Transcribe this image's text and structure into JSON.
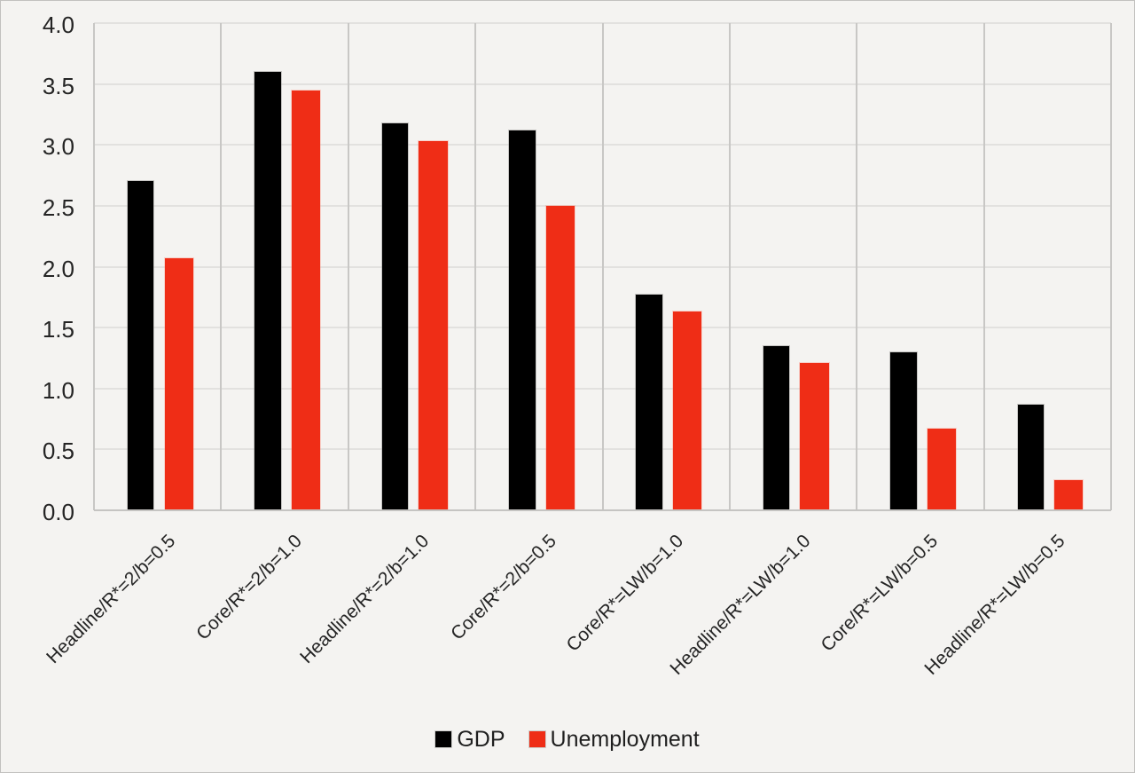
{
  "chart_data": {
    "type": "bar",
    "title": "",
    "xlabel": "",
    "ylabel": "",
    "categories": [
      "Headline/R*=2/b=0.5",
      "Core/R*=2/b=1.0",
      "Headline/R*=2/b=1.0",
      "Core/R*=2/b=0.5",
      "Core/R*=LW/b=1.0",
      "Headline/R*=LW/b=1.0",
      "Core/R*=LW/b=0.5",
      "Headline/R*=LW/b=0.5"
    ],
    "series": [
      {
        "name": "GDP",
        "color": "#000000",
        "values": [
          2.7,
          3.6,
          3.18,
          3.12,
          1.77,
          1.35,
          1.3,
          0.87
        ]
      },
      {
        "name": "Unemployment",
        "color": "#ef2d16",
        "values": [
          2.07,
          3.45,
          3.03,
          2.5,
          1.63,
          1.21,
          0.67,
          0.25
        ]
      }
    ],
    "ylim": [
      0,
      4
    ],
    "ytick_step": 0.5,
    "ytick_labels": [
      "4.0",
      "3.5",
      "3.0",
      "2.5",
      "2.0",
      "1.5",
      "1.0",
      "0.5",
      "0.0"
    ],
    "grid": true,
    "legend_position": "bottom"
  },
  "colors": {
    "background": "#f4f3f1",
    "gridline_horizontal": "#e2e1df",
    "gridline_vertical": "#c8c7c5",
    "axis_line": "#c5c4c2",
    "text": "#242424",
    "gdp_bar": "#000000",
    "unemployment_bar": "#ef2d16"
  }
}
